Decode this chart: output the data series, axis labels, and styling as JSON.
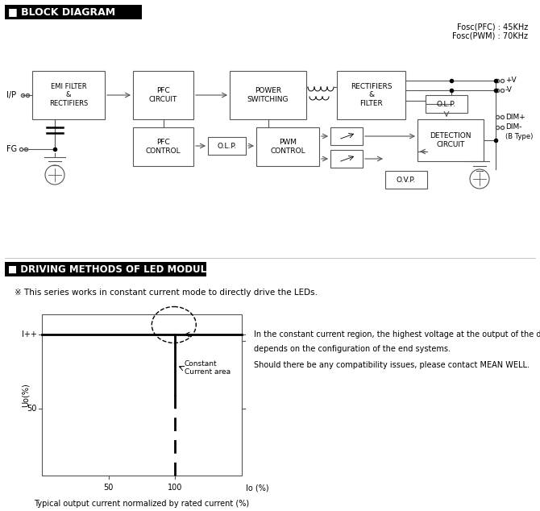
{
  "title_block": "■ BLOCK DIAGRAM",
  "title_driving": "■ DRIVING METHODS OF LED MODULE",
  "fosc_text": "Fosc(PFC) : 45KHz\nFosc(PWM) : 70KHz",
  "driving_note": "※ This series works in constant current mode to directly drive the LEDs.",
  "cc_text1": "In the constant current region, the highest voltage at the output of the driver",
  "cc_text2": "depends on the configuration of the end systems.",
  "cc_text3": "Should there be any compatibility issues, please contact MEAN WELL.",
  "bottom_caption": "Typical output current normalized by rated current (%)",
  "bg_color": "#ffffff"
}
